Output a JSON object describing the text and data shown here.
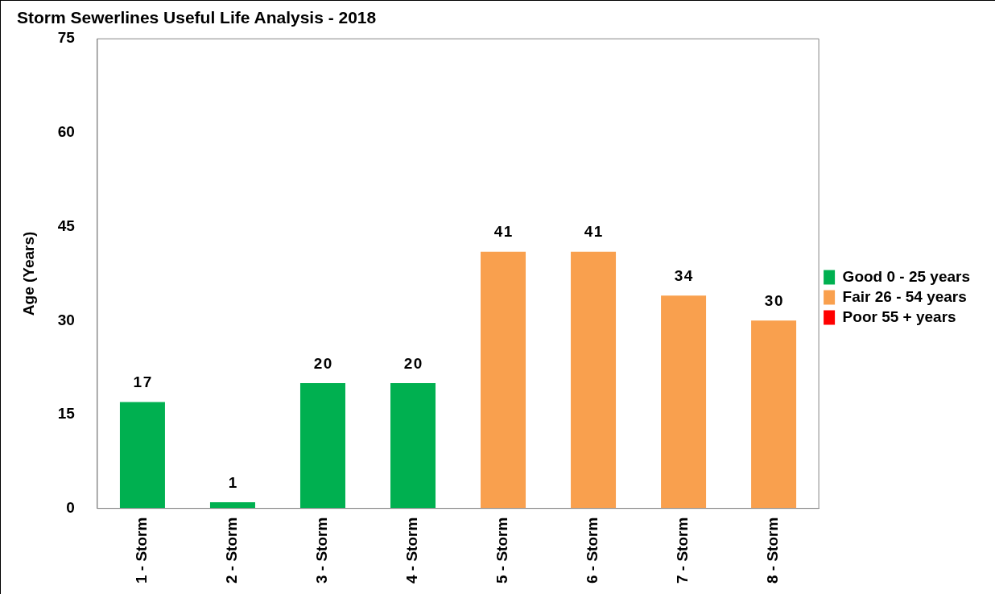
{
  "chart_data": {
    "type": "bar",
    "title": "Storm Sewerlines Useful Life Analysis - 2018",
    "ylabel": "Age (Years)",
    "categories": [
      "1 - Storm",
      "2 - Storm",
      "3 - Storm",
      "4 - Storm",
      "5 - Storm",
      "6 - Storm",
      "7 - Storm",
      "8 - Storm"
    ],
    "series": [
      {
        "name": "Good 0 - 25 years",
        "color": "#00b050",
        "values": [
          17,
          1,
          20,
          20,
          null,
          null,
          null,
          null
        ]
      },
      {
        "name": "Fair 26 - 54 years",
        "color": "#f9a04e",
        "values": [
          null,
          null,
          null,
          null,
          41,
          41,
          34,
          30
        ]
      },
      {
        "name": "Poor 55 + years",
        "color": "#ff0000",
        "values": [
          null,
          null,
          null,
          null,
          null,
          null,
          null,
          null
        ]
      }
    ],
    "stacked": true,
    "ylim": [
      0,
      75
    ],
    "yticks": [
      0,
      15,
      30,
      45,
      60,
      75
    ],
    "grid": false,
    "legend": "right",
    "data_labels": true
  }
}
